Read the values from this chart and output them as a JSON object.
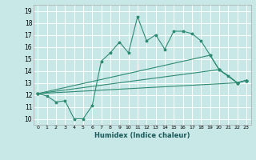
{
  "xlabel": "Humidex (Indice chaleur)",
  "bg_color": "#c8e8e8",
  "grid_color": "#ffffff",
  "line_color": "#2e8b72",
  "xlim": [
    -0.5,
    23.5
  ],
  "ylim": [
    9.5,
    19.5
  ],
  "xticks": [
    0,
    1,
    2,
    3,
    4,
    5,
    6,
    7,
    8,
    9,
    10,
    11,
    12,
    13,
    14,
    15,
    16,
    17,
    18,
    19,
    20,
    21,
    22,
    23
  ],
  "yticks": [
    10,
    11,
    12,
    13,
    14,
    15,
    16,
    17,
    18,
    19
  ],
  "series": [
    [
      0,
      12.1
    ],
    [
      1,
      11.9
    ],
    [
      2,
      11.4
    ],
    [
      3,
      11.5
    ],
    [
      4,
      10.0
    ],
    [
      5,
      10.0
    ],
    [
      6,
      11.1
    ],
    [
      7,
      14.8
    ],
    [
      8,
      15.5
    ],
    [
      9,
      16.4
    ],
    [
      10,
      15.5
    ],
    [
      11,
      18.5
    ],
    [
      12,
      16.5
    ],
    [
      13,
      17.0
    ],
    [
      14,
      15.8
    ],
    [
      15,
      17.3
    ],
    [
      16,
      17.3
    ],
    [
      17,
      17.1
    ],
    [
      18,
      16.5
    ],
    [
      19,
      15.3
    ],
    [
      20,
      14.1
    ],
    [
      21,
      13.6
    ],
    [
      22,
      13.0
    ],
    [
      23,
      13.2
    ]
  ],
  "line2": [
    [
      0,
      12.1
    ],
    [
      22,
      13.0
    ],
    [
      23,
      13.2
    ]
  ],
  "line3": [
    [
      0,
      12.1
    ],
    [
      20,
      14.1
    ],
    [
      22,
      13.0
    ],
    [
      23,
      13.2
    ]
  ],
  "line4": [
    [
      0,
      12.1
    ],
    [
      19,
      15.3
    ],
    [
      20,
      14.1
    ],
    [
      22,
      13.0
    ],
    [
      23,
      13.2
    ]
  ]
}
